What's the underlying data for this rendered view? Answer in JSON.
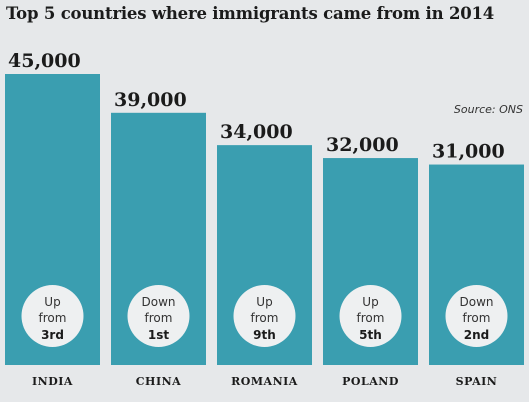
{
  "chart_data": {
    "type": "bar",
    "title": "Top 5 countries where immigrants came from in 2014",
    "source": "Source: ONS",
    "xlabel": "",
    "ylabel": "",
    "ylim": [
      0,
      45000
    ],
    "grid": false,
    "categories": [
      "INDIA",
      "CHINA",
      "ROMANIA",
      "POLAND",
      "SPAIN"
    ],
    "values": [
      45000,
      39000,
      34000,
      32000,
      31000
    ],
    "value_labels": [
      "45,000",
      "39,000",
      "34,000",
      "32,000",
      "31,000"
    ],
    "annotations": [
      {
        "line1": "Up",
        "line2": "from",
        "rank": "3rd"
      },
      {
        "line1": "Down",
        "line2": "from",
        "rank": "1st"
      },
      {
        "line1": "Up",
        "line2": "from",
        "rank": "9th"
      },
      {
        "line1": "Up",
        "line2": "from",
        "rank": "5th"
      },
      {
        "line1": "Down",
        "line2": "from",
        "rank": "2nd"
      }
    ],
    "colors": {
      "bar": "#3a9eb0",
      "circle": "#eef0f1",
      "text": "#1b1b1b",
      "background": "#e6e8ea"
    }
  }
}
